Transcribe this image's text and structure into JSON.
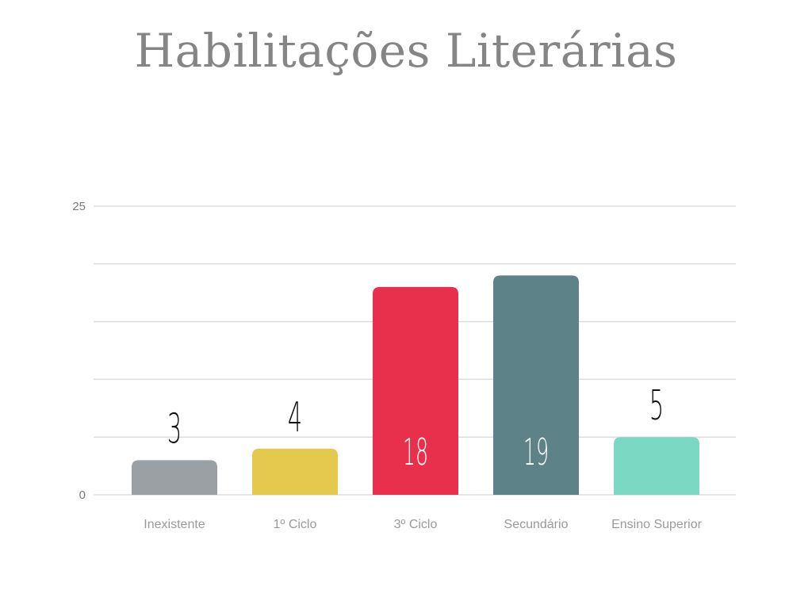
{
  "chart_data": {
    "type": "bar",
    "title": "Habilitações Literárias",
    "categories": [
      "Inexistente",
      "1º Ciclo",
      "3º Ciclo",
      "Secundário",
      "Ensino Superior"
    ],
    "values": [
      3,
      4,
      18,
      19,
      5
    ],
    "colors": [
      "#9aa0a4",
      "#e5c84e",
      "#e8304c",
      "#5d8288",
      "#7bd8c2"
    ],
    "value_label_colors": [
      "#111111",
      "#111111",
      "#ffffff",
      "#ffffff",
      "#111111"
    ],
    "ylim": [
      0,
      25
    ],
    "yticks_labeled": [
      0,
      25
    ],
    "grid": true,
    "xlabel": "",
    "ylabel": ""
  }
}
